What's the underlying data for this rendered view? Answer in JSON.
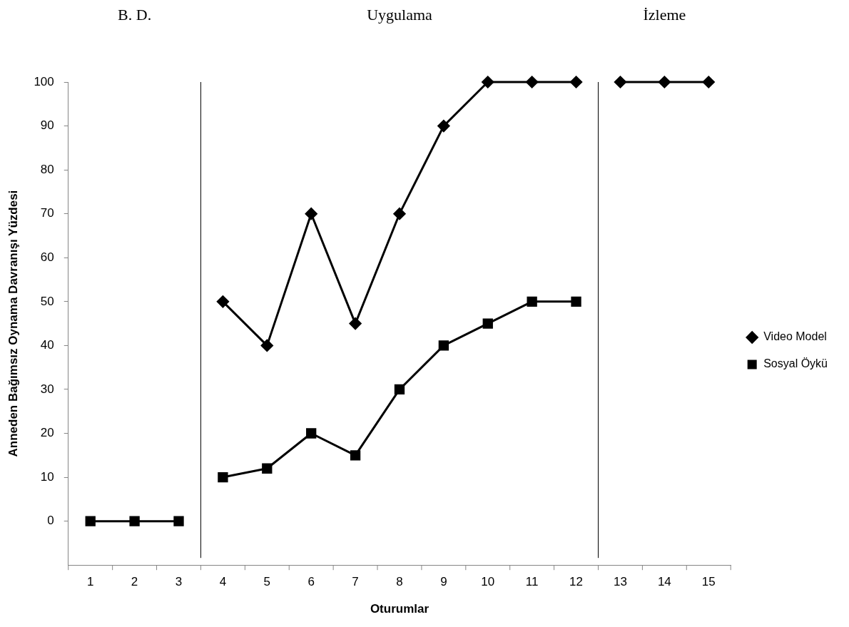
{
  "chart_data": {
    "type": "line",
    "xlabel": "Oturumlar",
    "ylabel": "Anneden Bağımsız Oynama Davranışı Yüzdesi",
    "x": [
      1,
      2,
      3,
      4,
      5,
      6,
      7,
      8,
      9,
      10,
      11,
      12,
      13,
      14,
      15
    ],
    "xlim": [
      0.5,
      15.5
    ],
    "xticks": [
      1,
      2,
      3,
      4,
      5,
      6,
      7,
      8,
      9,
      10,
      11,
      12,
      13,
      14,
      15
    ],
    "ylim": [
      -10,
      100
    ],
    "yticks": [
      0,
      10,
      20,
      30,
      40,
      50,
      60,
      70,
      80,
      90,
      100
    ],
    "series": [
      {
        "name": "Video Model",
        "color": "#000000",
        "marker": "diamond",
        "values": [
          null,
          null,
          null,
          50,
          40,
          70,
          45,
          70,
          90,
          100,
          100,
          100,
          100,
          100,
          100
        ]
      },
      {
        "name": "Sosyal Öykü",
        "color": "#000000",
        "marker": "square",
        "values": [
          0,
          0,
          0,
          10,
          12,
          20,
          15,
          30,
          40,
          45,
          50,
          50,
          null,
          null,
          null
        ]
      }
    ],
    "ref_lines": [
      {
        "axis": "x",
        "value": 3.5,
        "color": "#000000"
      },
      {
        "axis": "x",
        "value": 12.5,
        "color": "#000000"
      }
    ],
    "annotations": [
      "B. D.",
      "Uygulama",
      "İzleme"
    ],
    "legend": "right",
    "grid": false,
    "line_style": "solid"
  }
}
